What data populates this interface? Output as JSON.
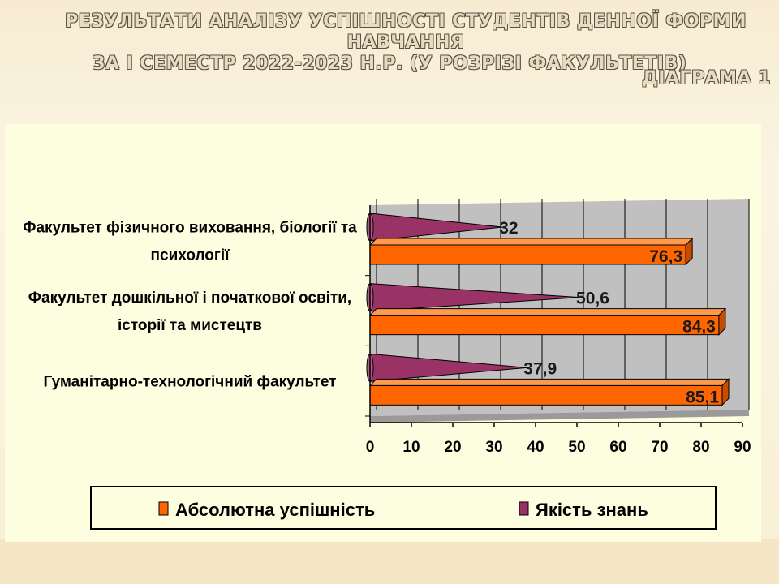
{
  "slide": {
    "title_line1": "РЕЗУЛЬТАТИ АНАЛІЗУ УСПІШНОСТІ СТУДЕНТІВ ДЕННОЇ ФОРМИ НАВЧАННЯ",
    "title_line2": "ЗА І СЕМЕСТР 2022-2023 Н.Р. (У РОЗРІЗІ ФАКУЛЬТЕТІВ)",
    "diagram_label": "ДІАГРАМА 1"
  },
  "chart_data": {
    "type": "bar",
    "orientation": "horizontal",
    "categories": [
      [
        "Факультет фізичного виховання, біології та",
        "психології"
      ],
      [
        "Факультет дошкільної і початкової освіти,",
        "історії та мистецтв"
      ],
      [
        "Гуманітарно-технологічний факультет"
      ]
    ],
    "series": [
      {
        "name": "Абсолютна успішність",
        "values": [
          76.3,
          84.3,
          85.1
        ],
        "labels": [
          "76,3",
          "84,3",
          "85,1"
        ],
        "color": "#ff6600",
        "shape": "bar-3d"
      },
      {
        "name": "Якість знань",
        "values": [
          32,
          50.6,
          37.9
        ],
        "labels": [
          "32",
          "50,6",
          "37,9"
        ],
        "color": "#993366",
        "shape": "cone"
      }
    ],
    "xlim": [
      0,
      90
    ],
    "xticks": [
      "0",
      "10",
      "20",
      "30",
      "40",
      "50",
      "60",
      "70",
      "80",
      "90"
    ],
    "grid": true,
    "legend_position": "bottom",
    "colors": {
      "plot_wall": "#c0c0c0",
      "panel": "#fdfde0",
      "axis": "#000000"
    }
  }
}
